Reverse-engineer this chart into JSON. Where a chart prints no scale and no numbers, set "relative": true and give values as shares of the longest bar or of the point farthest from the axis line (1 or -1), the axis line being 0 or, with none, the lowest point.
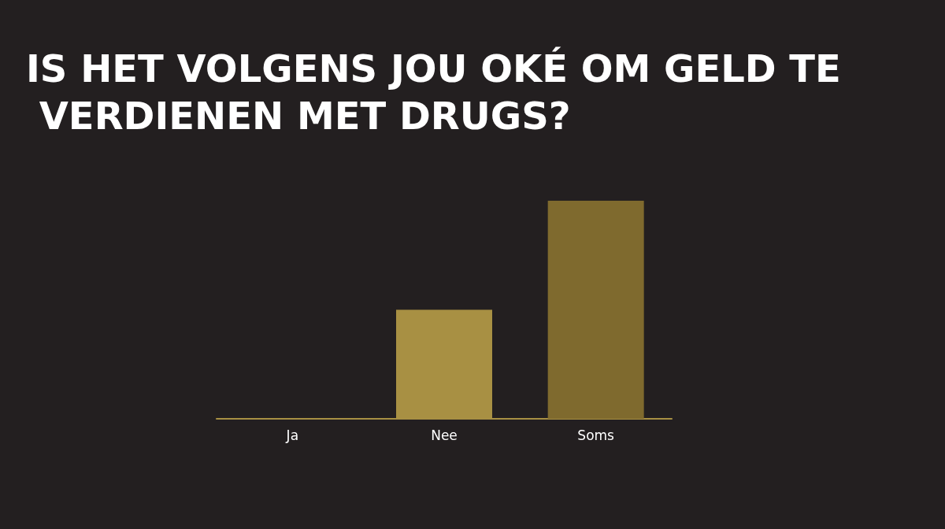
{
  "chart_data": {
    "type": "bar",
    "title": "IS HET VOLGENS JOU OKÉ OM GELD TE VERDIENEN MET DRUGS?",
    "categories": [
      "Ja",
      "Nee",
      "Soms"
    ],
    "values": [
      0,
      0.5,
      1
    ],
    "colors": [
      "#a89043",
      "#a89043",
      "#7f6a2e"
    ],
    "relative": true,
    "grid": false
  }
}
